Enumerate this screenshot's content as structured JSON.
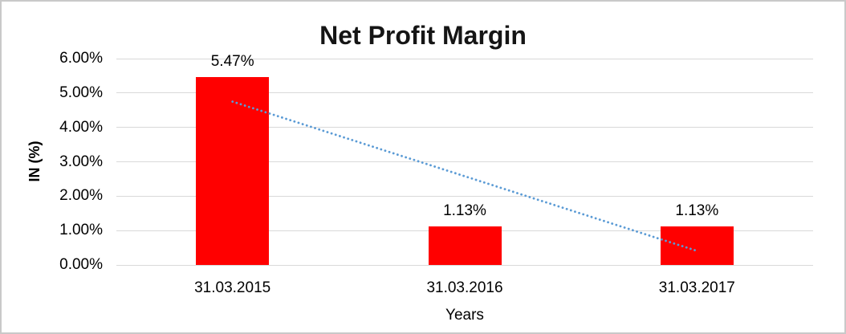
{
  "chart_data": {
    "type": "bar",
    "title": "Net Profit Margin",
    "xlabel": "Years",
    "ylabel": "IN (%)",
    "categories": [
      "31.03.2015",
      "31.03.2016",
      "31.03.2017"
    ],
    "values": [
      5.47,
      1.13,
      1.13
    ],
    "data_labels": [
      "5.47%",
      "1.13%",
      "1.13%"
    ],
    "ylim": [
      0,
      6
    ],
    "ytick_labels": [
      "0.00%",
      "1.00%",
      "2.00%",
      "3.00%",
      "4.00%",
      "5.00%",
      "6.00%"
    ],
    "grid": "horizontal",
    "legend_position": "none",
    "trendline": {
      "type": "linear",
      "style": "dotted",
      "values": [
        4.75,
        2.58,
        0.41
      ]
    },
    "colors": {
      "bar": "#FF0000",
      "trendline": "#5B9BD5",
      "gridline": "#D9D9D9",
      "border": "#C9C9C9",
      "text": "#000000"
    }
  }
}
